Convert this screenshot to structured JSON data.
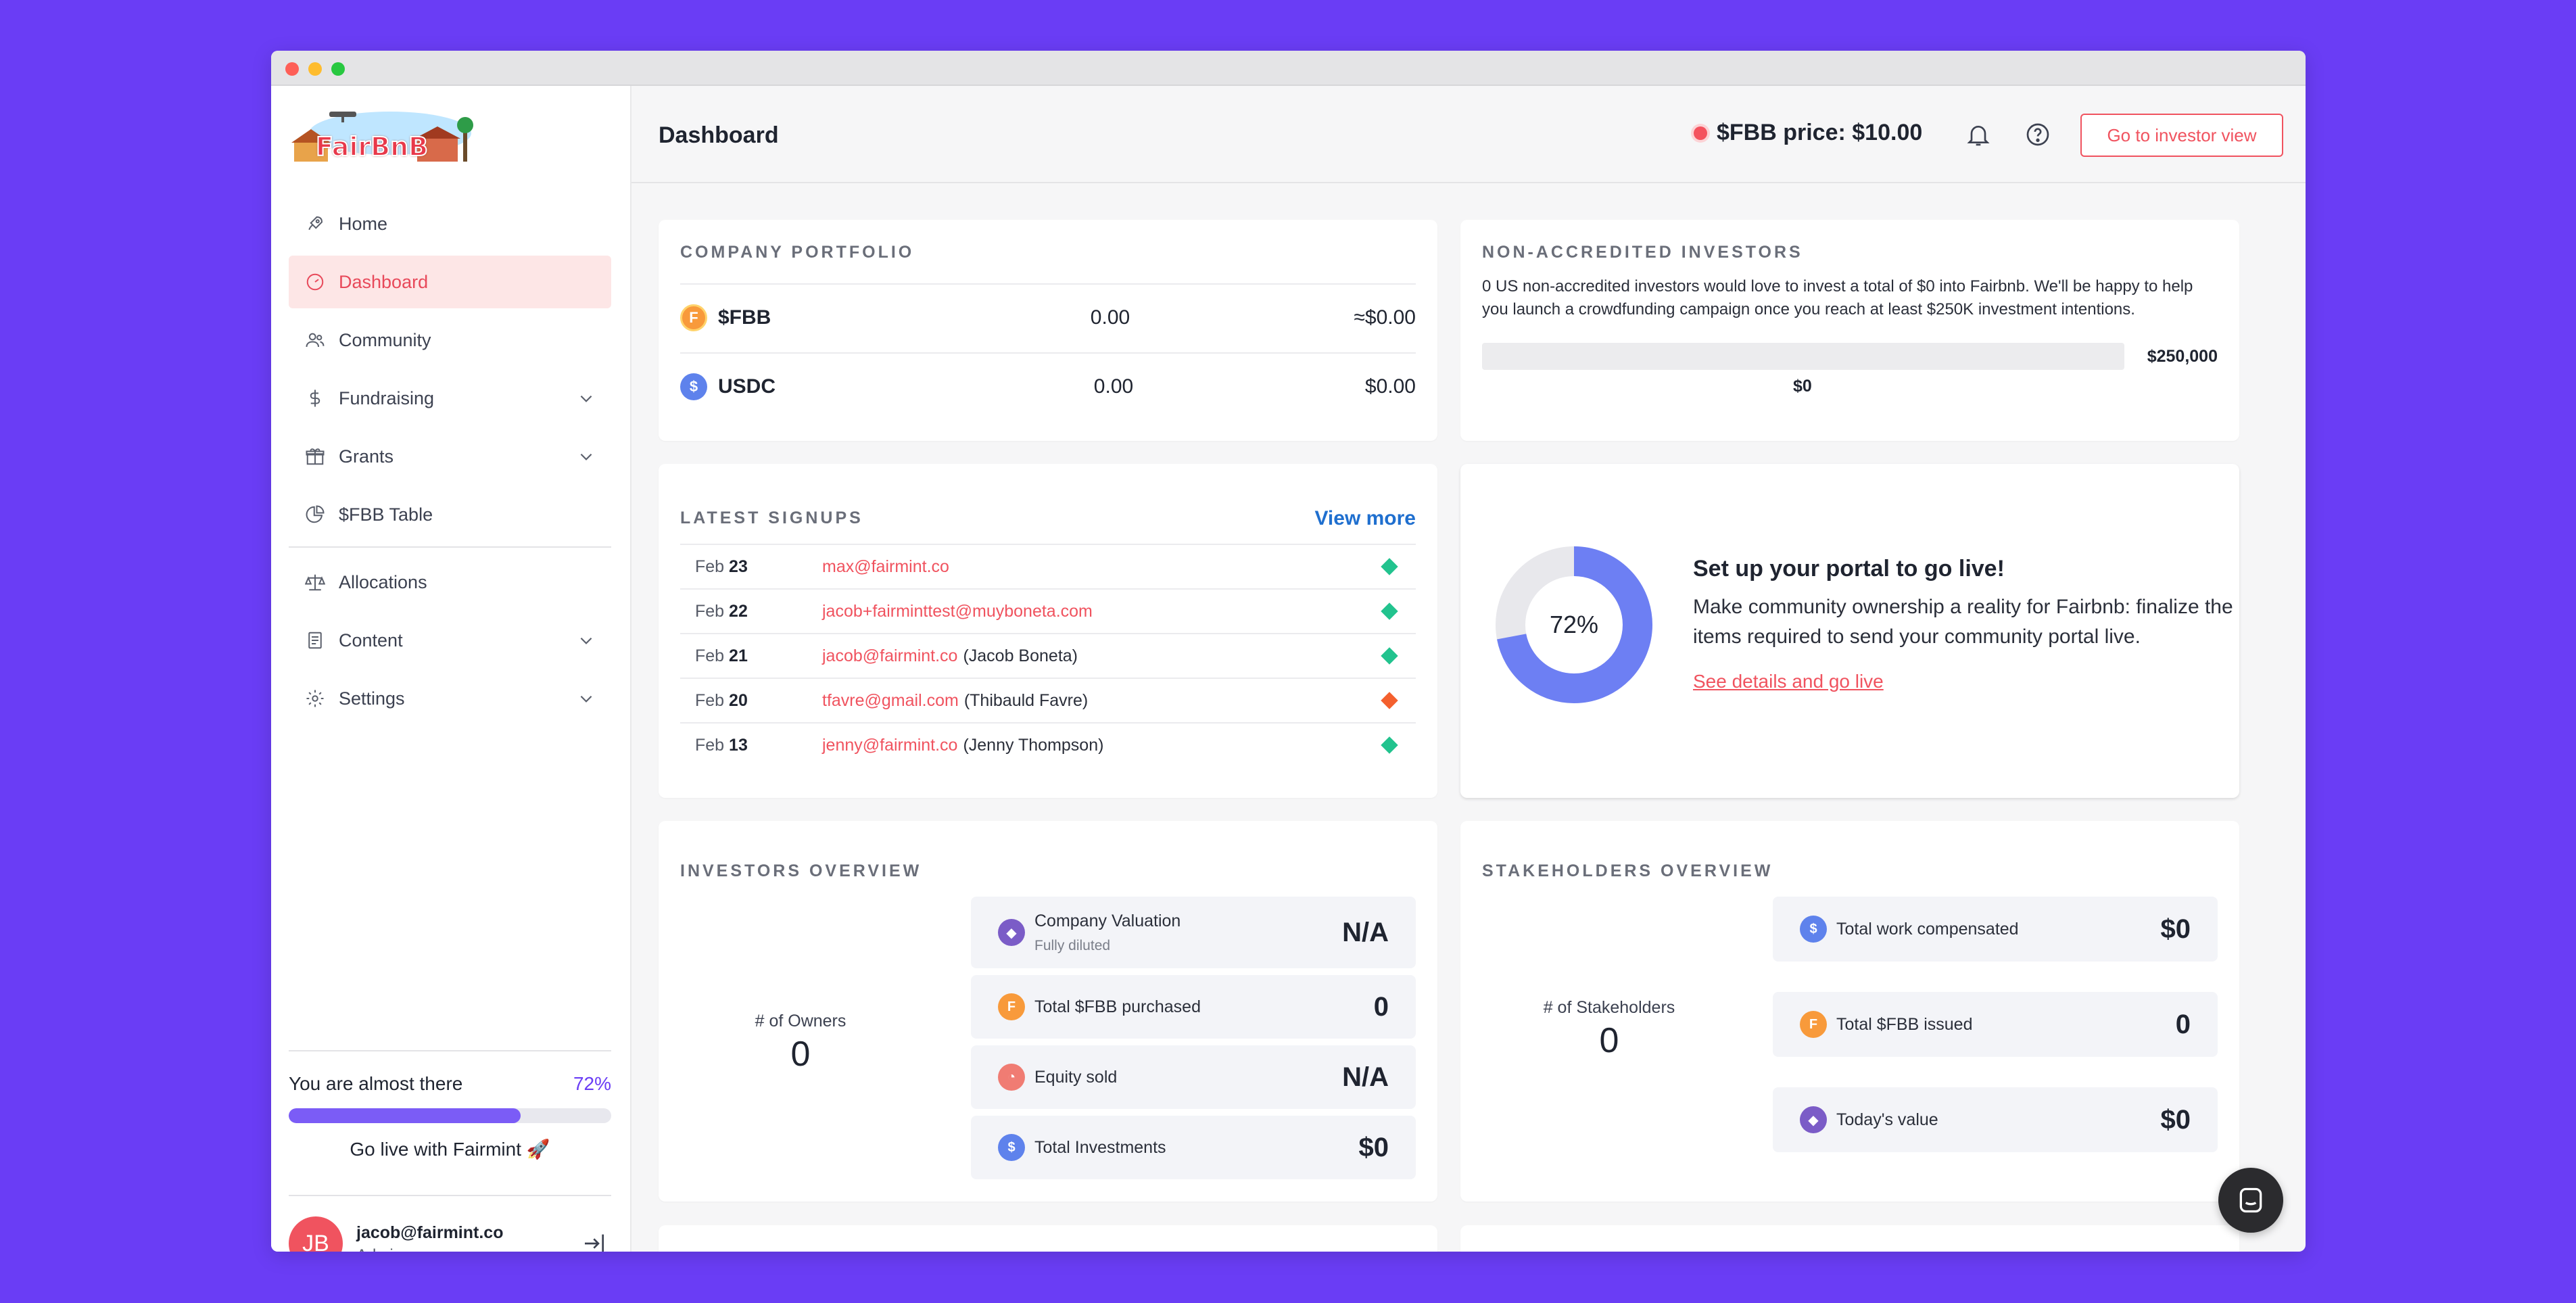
{
  "sidebar": {
    "logo_text": "FairBnB",
    "items": [
      {
        "label": "Home",
        "icon": "rocket-icon"
      },
      {
        "label": "Dashboard",
        "icon": "gauge-icon",
        "active": true
      },
      {
        "label": "Community",
        "icon": "users-icon"
      },
      {
        "label": "Fundraising",
        "icon": "dollar-icon",
        "has_submenu": true
      },
      {
        "label": "Grants",
        "icon": "gift-icon",
        "has_submenu": true
      },
      {
        "label": "$FBB Table",
        "icon": "pie-chart-icon"
      },
      {
        "label": "Allocations",
        "icon": "scale-icon"
      },
      {
        "label": "Content",
        "icon": "document-icon",
        "has_submenu": true
      },
      {
        "label": "Settings",
        "icon": "gear-icon",
        "has_submenu": true
      }
    ],
    "progress": {
      "label": "You are almost there",
      "percent_label": "72%",
      "value": 0.72,
      "cta": "Go live with Fairmint 🚀"
    },
    "user": {
      "initials": "JB",
      "email": "jacob@fairmint.co",
      "role": "Admin"
    }
  },
  "header": {
    "title": "Dashboard",
    "price_label": "$FBB price: $10.00",
    "investor_button": "Go to investor view"
  },
  "portfolio": {
    "title": "COMPANY PORTFOLIO",
    "rows": [
      {
        "symbol": "$FBB",
        "amount": "0.00",
        "value": "≈$0.00"
      },
      {
        "symbol": "USDC",
        "amount": "0.00",
        "value": "$0.00"
      }
    ]
  },
  "non_accredited": {
    "title": "NON-ACCREDITED INVESTORS",
    "text": "0 US non-accredited investors would love to invest a total of $0 into Fairbnb. We'll be happy to help you launch a crowdfunding campaign once you reach at least $250K investment intentions.",
    "max_label": "$250,000",
    "current_label": "$0",
    "progress_value": 0
  },
  "signups": {
    "title": "LATEST SIGNUPS",
    "view_more": "View more",
    "rows": [
      {
        "month": "Feb",
        "day": "23",
        "email": "max@fairmint.co",
        "name": "",
        "status_color": "#22c38e"
      },
      {
        "month": "Feb",
        "day": "22",
        "email": "jacob+fairminttest@muyboneta.com",
        "name": "",
        "status_color": "#22c38e"
      },
      {
        "month": "Feb",
        "day": "21",
        "email": "jacob@fairmint.co",
        "name": "(Jacob Boneta)",
        "status_color": "#22c38e"
      },
      {
        "month": "Feb",
        "day": "20",
        "email": "tfavre@gmail.com",
        "name": "(Thibauld Favre)",
        "status_color": "#f4602e"
      },
      {
        "month": "Feb",
        "day": "13",
        "email": "jenny@fairmint.co",
        "name": "(Jenny Thompson)",
        "status_color": "#22c38e"
      }
    ]
  },
  "golive": {
    "percent_label": "72%",
    "value": 0.72,
    "title": "Set up your portal to go live!",
    "text": "Make community ownership a reality for Fairbnb: finalize the items required to send your community portal live.",
    "link": "See details and go live"
  },
  "investors": {
    "title": "INVESTORS OVERVIEW",
    "owners_label": "# of Owners",
    "owners_value": "0",
    "boxes": [
      {
        "label": "Company Valuation",
        "sub": "Fully diluted",
        "value": "N/A",
        "icon": "shield-icon",
        "color": "#7b5cc7"
      },
      {
        "label": "Total $FBB purchased",
        "sub": "",
        "value": "0",
        "icon": "fbb-coin-icon",
        "color": "#f89a3b"
      },
      {
        "label": "Equity sold",
        "sub": "",
        "value": "N/A",
        "icon": "pie-icon",
        "color": "#f07c73"
      },
      {
        "label": "Total Investments",
        "sub": "",
        "value": "$0",
        "icon": "dollar-coin-icon",
        "color": "#5e82ec"
      }
    ]
  },
  "stakeholders": {
    "title": "STAKEHOLDERS OVERVIEW",
    "count_label": "# of Stakeholders",
    "count_value": "0",
    "boxes": [
      {
        "label": "Total work compensated",
        "value": "$0",
        "icon": "dollar-coin-icon",
        "color": "#5e82ec"
      },
      {
        "label": "Total $FBB issued",
        "value": "0",
        "icon": "fbb-coin-icon",
        "color": "#f89a3b"
      },
      {
        "label": "Today's value",
        "value": "$0",
        "icon": "shield-icon",
        "color": "#7b5cc7"
      }
    ]
  },
  "colors": {
    "accent": "#f0535f",
    "brand": "#6a3df5",
    "link": "#1f6fcf"
  }
}
